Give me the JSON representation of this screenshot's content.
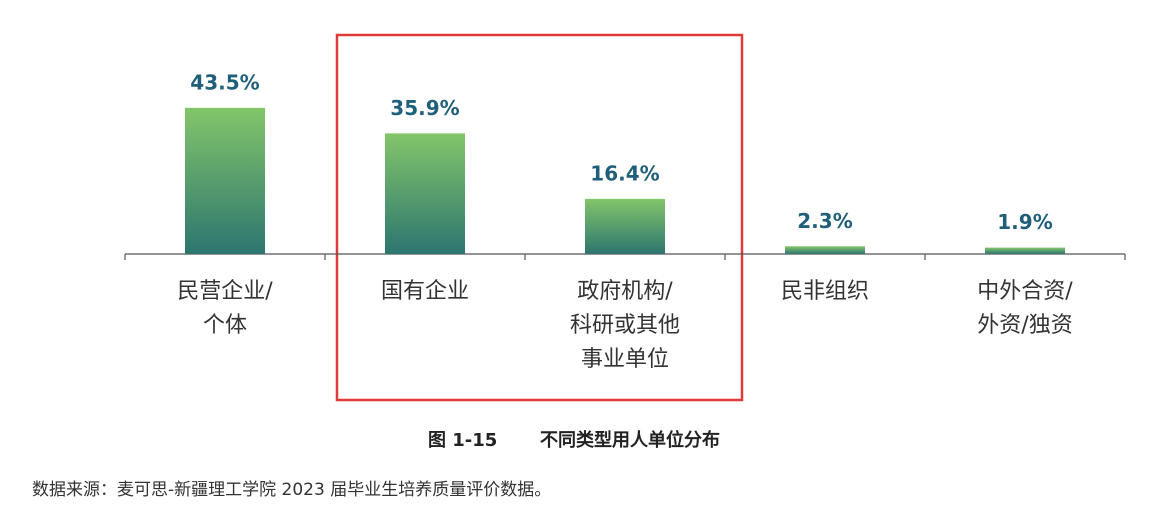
{
  "chart_data": {
    "type": "bar",
    "categories": [
      [
        "民营企业/",
        "个体"
      ],
      [
        "国有企业"
      ],
      [
        "政府机构/",
        "科研或其他",
        "事业单位"
      ],
      [
        "民非组织"
      ],
      [
        "中外合资/",
        "外资/独资"
      ]
    ],
    "values": [
      43.5,
      35.9,
      16.4,
      2.3,
      1.9
    ],
    "value_labels": [
      "43.5%",
      "35.9%",
      "16.4%",
      "2.3%",
      "1.9%"
    ],
    "color": [
      "#82c66a",
      "#2d7570"
    ],
    "figure_label": "图 1-15",
    "title": "不同类型用人单位分布",
    "source": "数据来源：麦可思-新疆理工学院 2023 届毕业生培养质量评价数据。"
  }
}
